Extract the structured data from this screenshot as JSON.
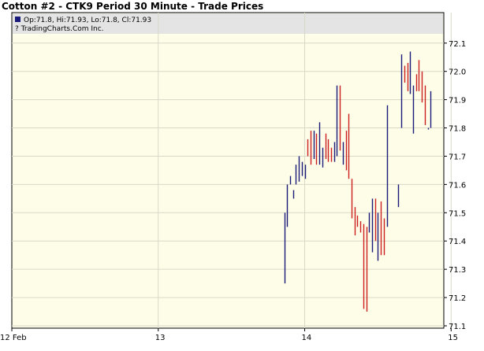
{
  "title": "Cotton #2 - CTK9 Period 30 Minute - Trade Prices",
  "info_line": "Op:71.8, Hi:71.93, Lo:71.8, Cl:71.93",
  "copyright": "? TradingCharts.Com Inc.",
  "colors": {
    "background": "#fdfde8",
    "up_bar": "#1a1a7a",
    "down_bar": "#cc1f1f",
    "grid": "#d8d8c8"
  },
  "chart_data": {
    "type": "ohlc",
    "title": "Cotton #2 - CTK9 Period 30 Minute - Trade Prices",
    "ylim": [
      71.1,
      72.13
    ],
    "y_ticks": [
      "72.1",
      "72.0",
      "71.9",
      "71.8",
      "71.7",
      "71.6",
      "71.5",
      "71.4",
      "71.3",
      "71.2",
      "71.1"
    ],
    "x_ticks": [
      "12 Feb",
      "13",
      "14",
      "15"
    ],
    "x_tick_days": [
      12,
      13,
      14,
      15
    ],
    "xlim_days": [
      12.0,
      14.95
    ],
    "grid": true,
    "bars": [
      {
        "t": 13.86,
        "high": 71.5,
        "low": 71.25,
        "dir": "up"
      },
      {
        "t": 13.88,
        "high": 71.6,
        "low": 71.45,
        "dir": "up"
      },
      {
        "t": 13.9,
        "high": 71.63,
        "low": 71.6,
        "dir": "up"
      },
      {
        "t": 13.92,
        "high": 71.58,
        "low": 71.55,
        "dir": "up"
      },
      {
        "t": 13.94,
        "high": 71.67,
        "low": 71.6,
        "dir": "up"
      },
      {
        "t": 13.96,
        "high": 71.7,
        "low": 71.61,
        "dir": "up"
      },
      {
        "t": 13.98,
        "high": 71.68,
        "low": 71.63,
        "dir": "up"
      },
      {
        "t": 14.0,
        "high": 71.67,
        "low": 71.62,
        "dir": "up"
      },
      {
        "t": 14.02,
        "high": 71.76,
        "low": 71.7,
        "dir": "down"
      },
      {
        "t": 14.04,
        "high": 71.79,
        "low": 71.67,
        "dir": "down"
      },
      {
        "t": 14.06,
        "high": 71.79,
        "low": 71.69,
        "dir": "up"
      },
      {
        "t": 14.08,
        "high": 71.78,
        "low": 71.67,
        "dir": "down"
      },
      {
        "t": 14.1,
        "high": 71.82,
        "low": 71.67,
        "dir": "up"
      },
      {
        "t": 14.12,
        "high": 71.73,
        "low": 71.66,
        "dir": "up"
      },
      {
        "t": 14.14,
        "high": 71.78,
        "low": 71.69,
        "dir": "down"
      },
      {
        "t": 14.16,
        "high": 71.76,
        "low": 71.68,
        "dir": "down"
      },
      {
        "t": 14.18,
        "high": 71.73,
        "low": 71.68,
        "dir": "down"
      },
      {
        "t": 14.2,
        "high": 71.75,
        "low": 71.68,
        "dir": "up"
      },
      {
        "t": 14.22,
        "high": 71.95,
        "low": 71.7,
        "dir": "up"
      },
      {
        "t": 14.24,
        "high": 71.95,
        "low": 71.72,
        "dir": "down"
      },
      {
        "t": 14.26,
        "high": 71.75,
        "low": 71.67,
        "dir": "up"
      },
      {
        "t": 14.28,
        "high": 71.79,
        "low": 71.65,
        "dir": "down"
      },
      {
        "t": 14.3,
        "high": 71.85,
        "low": 71.62,
        "dir": "down"
      },
      {
        "t": 14.32,
        "high": 71.62,
        "low": 71.48,
        "dir": "down"
      },
      {
        "t": 14.34,
        "high": 71.52,
        "low": 71.42,
        "dir": "down"
      },
      {
        "t": 14.36,
        "high": 71.49,
        "low": 71.45,
        "dir": "down"
      },
      {
        "t": 14.38,
        "high": 71.47,
        "low": 71.43,
        "dir": "down"
      },
      {
        "t": 14.4,
        "high": 71.46,
        "low": 71.16,
        "dir": "down"
      },
      {
        "t": 14.42,
        "high": 71.45,
        "low": 71.15,
        "dir": "down"
      },
      {
        "t": 14.44,
        "high": 71.5,
        "low": 71.43,
        "dir": "up"
      },
      {
        "t": 14.46,
        "high": 71.55,
        "low": 71.36,
        "dir": "up"
      },
      {
        "t": 14.48,
        "high": 71.55,
        "low": 71.4,
        "dir": "down"
      },
      {
        "t": 14.5,
        "high": 71.5,
        "low": 71.33,
        "dir": "up"
      },
      {
        "t": 14.52,
        "high": 71.54,
        "low": 71.35,
        "dir": "down"
      },
      {
        "t": 14.54,
        "high": 71.48,
        "low": 71.35,
        "dir": "down"
      },
      {
        "t": 14.56,
        "high": 71.88,
        "low": 71.45,
        "dir": "up"
      },
      {
        "t": 14.64,
        "high": 71.6,
        "low": 71.52,
        "dir": "up"
      },
      {
        "t": 14.66,
        "high": 72.06,
        "low": 71.8,
        "dir": "up"
      },
      {
        "t": 14.68,
        "high": 72.02,
        "low": 71.96,
        "dir": "down"
      },
      {
        "t": 14.7,
        "high": 72.03,
        "low": 71.93,
        "dir": "down"
      },
      {
        "t": 14.72,
        "high": 72.07,
        "low": 71.92,
        "dir": "up"
      },
      {
        "t": 14.74,
        "high": 71.95,
        "low": 71.78,
        "dir": "up"
      },
      {
        "t": 14.76,
        "high": 71.99,
        "low": 71.93,
        "dir": "down"
      },
      {
        "t": 14.78,
        "high": 72.04,
        "low": 71.93,
        "dir": "down"
      },
      {
        "t": 14.8,
        "high": 72.0,
        "low": 71.89,
        "dir": "down"
      },
      {
        "t": 14.82,
        "high": 71.95,
        "low": 71.81,
        "dir": "down"
      },
      {
        "t": 14.84,
        "high": 71.8,
        "low": 71.8,
        "dir": "up"
      },
      {
        "t": 14.86,
        "high": 71.93,
        "low": 71.8,
        "dir": "up"
      }
    ]
  }
}
